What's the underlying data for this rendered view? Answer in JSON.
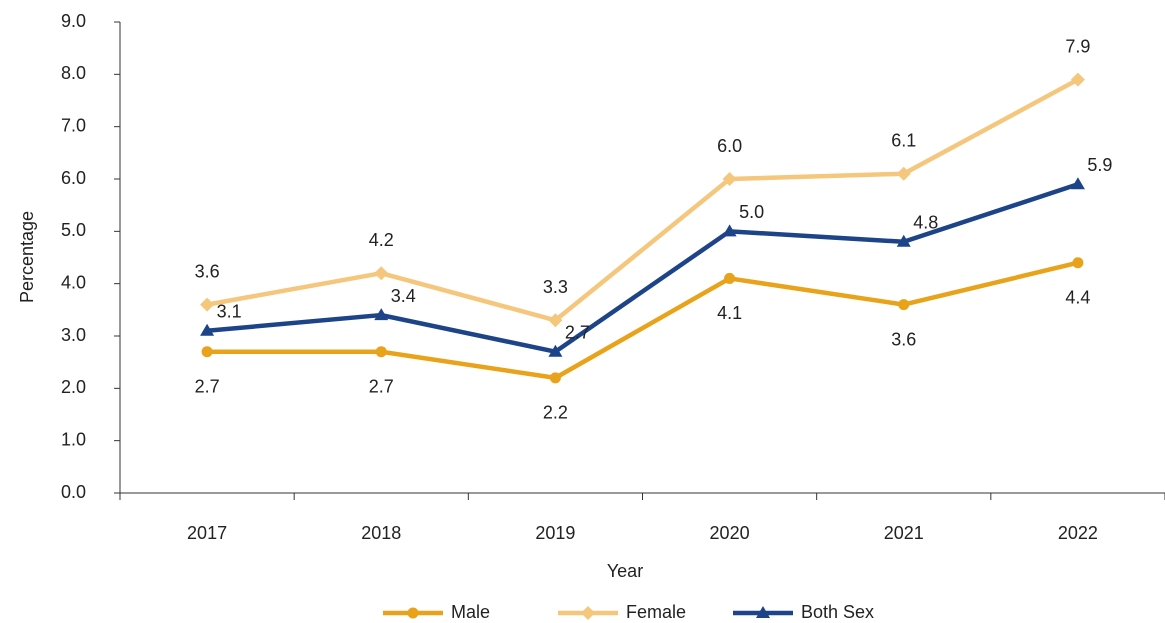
{
  "chart_data": {
    "type": "line",
    "x_label": "Year",
    "y_label": "Percentage",
    "categories": [
      "2017",
      "2018",
      "2019",
      "2020",
      "2021",
      "2022"
    ],
    "ylim": [
      0,
      9
    ],
    "yticks": [
      {
        "value": 0,
        "label": "0.0"
      },
      {
        "value": 1,
        "label": "1.0"
      },
      {
        "value": 2,
        "label": "2.0"
      },
      {
        "value": 3,
        "label": "3.0"
      },
      {
        "value": 4,
        "label": "4.0"
      },
      {
        "value": 5,
        "label": "5.0"
      },
      {
        "value": 6,
        "label": "6.0"
      },
      {
        "value": 7,
        "label": "7.0"
      },
      {
        "value": 8,
        "label": "8.0"
      },
      {
        "value": 9,
        "label": "9.0"
      }
    ],
    "legend": "bottom",
    "series": [
      {
        "name": "Male",
        "color": "#e9a31b",
        "marker": "circle",
        "values": [
          2.7,
          2.7,
          2.2,
          4.1,
          3.6,
          4.4
        ],
        "value_labels": [
          "2.7",
          "2.7",
          "2.2",
          "4.1",
          "3.6",
          "4.4"
        ]
      },
      {
        "name": "Female",
        "color": "#f5c77c",
        "marker": "diamond",
        "values": [
          3.6,
          4.2,
          3.3,
          6.0,
          6.1,
          7.9
        ],
        "value_labels": [
          "3.6",
          "4.2",
          "3.3",
          "6.0",
          "6.1",
          "7.9"
        ]
      },
      {
        "name": "Both Sex",
        "color": "#1d4489",
        "marker": "triangle",
        "values": [
          3.1,
          3.4,
          2.7,
          5.0,
          4.8,
          5.9
        ],
        "value_labels": [
          "3.1",
          "3.4",
          "2.7",
          "5.0",
          "4.8",
          "5.9"
        ]
      }
    ]
  }
}
